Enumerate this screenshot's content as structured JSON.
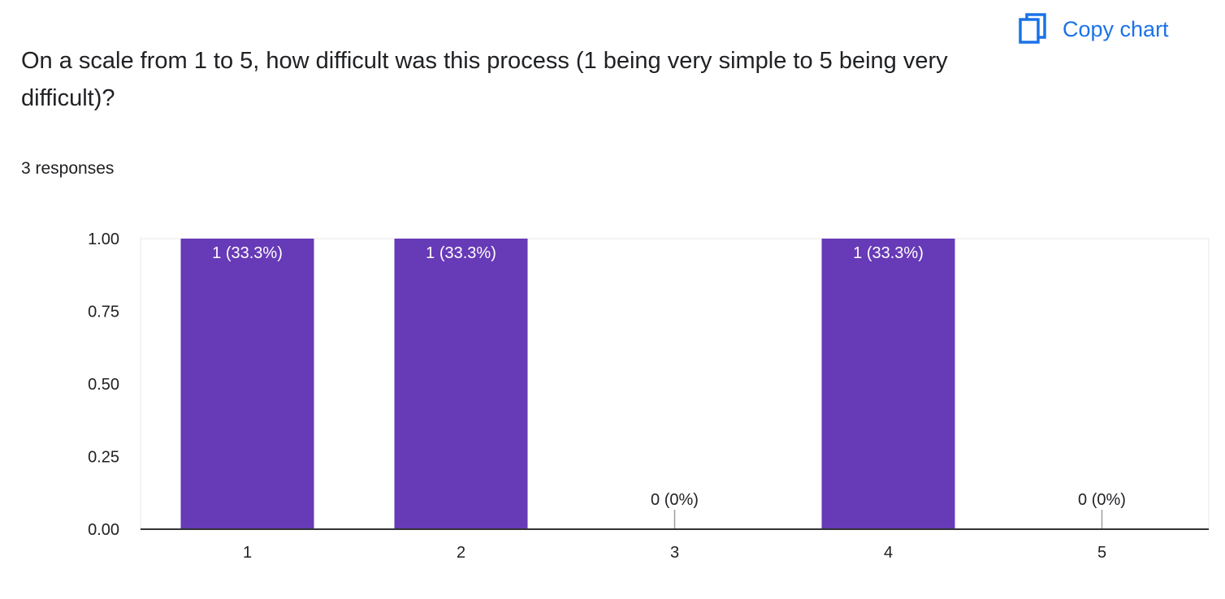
{
  "header": {
    "question": "On a scale from 1 to 5, how difficult was this process (1 being very simple to 5 being very difficult)?",
    "responses": "3 responses",
    "copy_label": "Copy chart",
    "copy_icon": "copy-icon"
  },
  "colors": {
    "bar": "#673ab7",
    "accent": "#1a73e8"
  },
  "chart_data": {
    "type": "bar",
    "categories": [
      "1",
      "2",
      "3",
      "4",
      "5"
    ],
    "values": [
      1,
      1,
      0,
      1,
      0
    ],
    "data_labels": [
      "1 (33.3%)",
      "1 (33.3%)",
      "0 (0%)",
      "1 (33.3%)",
      "0 (0%)"
    ],
    "title": "On a scale from 1 to 5, how difficult was this process (1 being very simple to 5 being very difficult)?",
    "xlabel": "",
    "ylabel": "",
    "ylim": [
      0,
      1
    ],
    "yticks": [
      "0.00",
      "0.25",
      "0.50",
      "0.75",
      "1.00"
    ],
    "grid": false,
    "legend": "none"
  }
}
